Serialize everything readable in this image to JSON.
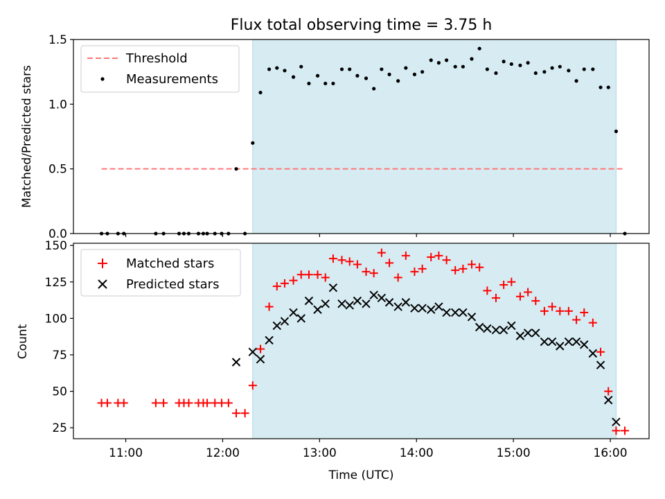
{
  "title": "Flux total observing time = 3.75 h",
  "colors": {
    "shade": "#add8e6",
    "threshold": "#ff7777",
    "measurement": "#000000",
    "matched": "#ff0000",
    "predicted": "#000000"
  },
  "chart_data": [
    {
      "type": "scatter",
      "panel": "top",
      "ylabel": "Matched/Predicted stars",
      "xlabel": "",
      "xlim": [
        10.46,
        16.4
      ],
      "ylim": [
        0,
        1.5
      ],
      "yticks": [
        0,
        0.5,
        1.0,
        1.5
      ],
      "ytick_labels": [
        "0.0",
        "0.5",
        "1.0",
        "1.5"
      ],
      "xticks": [
        11,
        12,
        13,
        14,
        15,
        16
      ],
      "shaded_span": [
        12.31,
        16.06
      ],
      "legend": {
        "placement": "top-left",
        "entries": [
          "Threshold",
          "Measurements"
        ]
      },
      "threshold": {
        "name": "Threshold",
        "y": 0.5,
        "x_start": 10.75,
        "x_end": 16.15,
        "style": "dashed"
      },
      "series": [
        {
          "name": "Measurements",
          "x": [
            10.75,
            10.81,
            10.92,
            10.98,
            11.31,
            11.39,
            11.55,
            11.6,
            11.65,
            11.75,
            11.8,
            11.84,
            11.92,
            11.99,
            12.06,
            12.14,
            12.23,
            12.31,
            12.39,
            12.48,
            12.56,
            12.64,
            12.73,
            12.81,
            12.89,
            12.98,
            13.06,
            13.14,
            13.23,
            13.31,
            13.39,
            13.48,
            13.56,
            13.64,
            13.72,
            13.81,
            13.89,
            13.98,
            14.06,
            14.15,
            14.23,
            14.31,
            14.4,
            14.48,
            14.57,
            14.65,
            14.73,
            14.82,
            14.9,
            14.98,
            15.07,
            15.15,
            15.23,
            15.32,
            15.4,
            15.48,
            15.57,
            15.65,
            15.73,
            15.82,
            15.9,
            15.98,
            16.06,
            16.15
          ],
          "y": [
            0,
            0,
            0,
            0,
            0,
            0,
            0,
            0,
            0,
            0,
            0,
            0,
            0,
            0,
            0,
            0.5,
            0,
            0.7,
            1.09,
            1.27,
            1.28,
            1.26,
            1.21,
            1.29,
            1.16,
            1.22,
            1.16,
            1.16,
            1.27,
            1.27,
            1.22,
            1.2,
            1.12,
            1.27,
            1.23,
            1.18,
            1.28,
            1.23,
            1.25,
            1.34,
            1.32,
            1.34,
            1.29,
            1.29,
            1.35,
            1.43,
            1.27,
            1.24,
            1.33,
            1.31,
            1.3,
            1.32,
            1.24,
            1.25,
            1.28,
            1.29,
            1.26,
            1.18,
            1.27,
            1.27,
            1.13,
            1.13,
            0.79,
            0
          ]
        }
      ]
    },
    {
      "type": "scatter",
      "panel": "bottom",
      "ylabel": "Count",
      "xlabel": "Time (UTC)",
      "xlim": [
        10.46,
        16.4
      ],
      "ylim": [
        17.5,
        151.5
      ],
      "yticks": [
        25,
        50,
        75,
        100,
        125,
        150
      ],
      "ytick_labels": [
        "25",
        "50",
        "75",
        "100",
        "125",
        "150"
      ],
      "xticks": [
        11,
        12,
        13,
        14,
        15,
        16
      ],
      "xtick_labels": [
        "11:00",
        "12:00",
        "13:00",
        "14:00",
        "15:00",
        "16:00"
      ],
      "shaded_span": [
        12.31,
        16.06
      ],
      "legend": {
        "placement": "top-left",
        "entries": [
          "Matched stars",
          "Predicted stars"
        ]
      },
      "series": [
        {
          "name": "Matched stars",
          "marker": "plus",
          "x": [
            10.75,
            10.81,
            10.92,
            10.98,
            11.31,
            11.39,
            11.55,
            11.6,
            11.65,
            11.75,
            11.8,
            11.84,
            11.92,
            11.99,
            12.06,
            12.14,
            12.23,
            12.31,
            12.39,
            12.48,
            12.56,
            12.64,
            12.73,
            12.81,
            12.89,
            12.98,
            13.06,
            13.14,
            13.23,
            13.31,
            13.39,
            13.48,
            13.56,
            13.64,
            13.72,
            13.81,
            13.89,
            13.98,
            14.06,
            14.15,
            14.23,
            14.31,
            14.4,
            14.48,
            14.57,
            14.65,
            14.73,
            14.82,
            14.9,
            14.98,
            15.07,
            15.15,
            15.23,
            15.32,
            15.4,
            15.48,
            15.57,
            15.65,
            15.73,
            15.82,
            15.9,
            15.98,
            16.06,
            16.15
          ],
          "y": [
            42,
            42,
            42,
            42,
            42,
            42,
            42,
            42,
            42,
            42,
            42,
            42,
            42,
            42,
            42,
            35,
            35,
            54,
            79,
            108,
            122,
            124,
            126,
            130,
            130,
            130,
            128,
            141,
            140,
            139,
            137,
            132,
            131,
            145,
            138,
            128,
            143,
            132,
            134,
            142,
            143,
            140,
            133,
            134,
            137,
            135,
            119,
            114,
            123,
            125,
            115,
            118,
            112,
            105,
            108,
            105,
            105,
            99,
            104,
            97,
            77,
            50,
            23,
            23
          ]
        },
        {
          "name": "Predicted stars",
          "marker": "x",
          "x": [
            12.14,
            12.31,
            12.39,
            12.48,
            12.56,
            12.64,
            12.73,
            12.81,
            12.89,
            12.98,
            13.06,
            13.14,
            13.23,
            13.31,
            13.39,
            13.48,
            13.56,
            13.64,
            13.72,
            13.81,
            13.89,
            13.98,
            14.06,
            14.15,
            14.23,
            14.31,
            14.4,
            14.48,
            14.57,
            14.65,
            14.73,
            14.82,
            14.9,
            14.98,
            15.07,
            15.15,
            15.23,
            15.32,
            15.4,
            15.48,
            15.57,
            15.65,
            15.73,
            15.82,
            15.9,
            15.98,
            16.06
          ],
          "y": [
            70,
            77,
            72,
            85,
            95,
            98,
            104,
            100,
            112,
            106,
            110,
            121,
            110,
            109,
            112,
            110,
            116,
            114,
            111,
            108,
            111,
            107,
            107,
            106,
            108,
            104,
            104,
            104,
            101,
            94,
            93,
            92,
            92,
            95,
            88,
            90,
            90,
            84,
            84,
            81,
            84,
            84,
            82,
            76,
            68,
            44,
            29
          ]
        }
      ]
    }
  ]
}
